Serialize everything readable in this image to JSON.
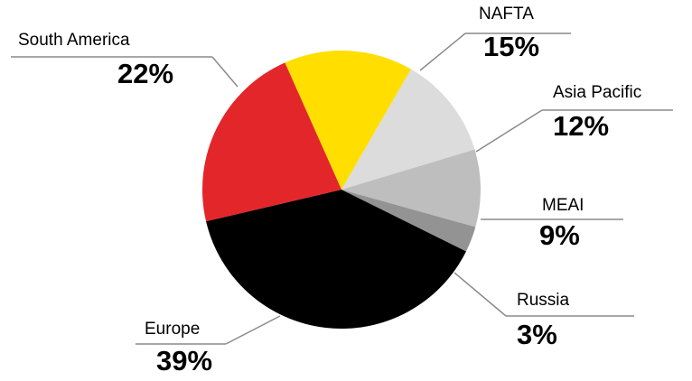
{
  "chart_data": {
    "type": "pie",
    "categories": [
      "NAFTA",
      "Asia Pacific",
      "MEAI",
      "Russia",
      "Europe",
      "South America"
    ],
    "values": [
      15,
      12,
      9,
      3,
      39,
      22
    ],
    "value_labels": [
      "15%",
      "12%",
      "9%",
      "3%",
      "39%",
      "22%"
    ],
    "colors": [
      "#ffde00",
      "#dcdcdc",
      "#bebebe",
      "#939393",
      "#000000",
      "#e3262a"
    ]
  }
}
